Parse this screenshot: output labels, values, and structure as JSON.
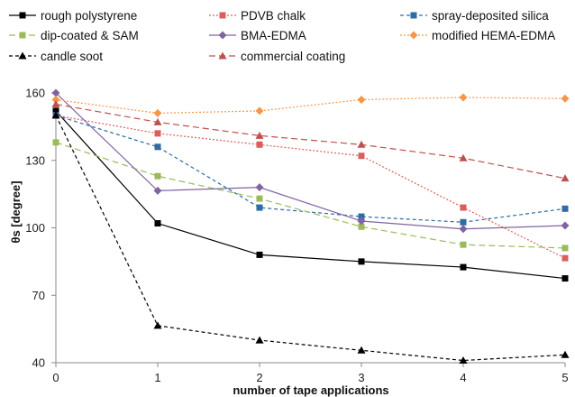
{
  "chart_data": {
    "type": "line",
    "title": "",
    "xlabel": "number of tape applications",
    "ylabel": "θs [degree]",
    "x": [
      0,
      1,
      2,
      3,
      4,
      5
    ],
    "x_ticks": [
      "0",
      "1",
      "2",
      "3",
      "4",
      "5"
    ],
    "ylim": [
      40,
      160
    ],
    "y_ticks": [
      "40",
      "70",
      "100",
      "130",
      "160"
    ],
    "grid": false,
    "legend_position": "top",
    "series": [
      {
        "name": "rough polystyrene",
        "color": "#000000",
        "marker": "square",
        "dash": "solid",
        "values": [
          152,
          102,
          88,
          85,
          82.5,
          77.5
        ]
      },
      {
        "name": "PDVB chalk",
        "color": "#d95f5f",
        "marker": "square",
        "dash": "dot",
        "values": [
          150,
          142,
          137,
          132,
          109,
          86.5
        ]
      },
      {
        "name": "spray-deposited silica",
        "color": "#2e6da4",
        "marker": "square",
        "dash": "dash",
        "values": [
          150,
          136,
          109,
          105,
          102.5,
          108.5
        ]
      },
      {
        "name": "dip-coated & SAM",
        "color": "#9bbb59",
        "marker": "square",
        "dash": "longdash",
        "values": [
          138,
          123,
          113,
          100.5,
          92.5,
          91
        ]
      },
      {
        "name": "BMA-EDMA",
        "color": "#8064a2",
        "marker": "diamond",
        "dash": "solid",
        "values": [
          160,
          116.5,
          118,
          103,
          99.5,
          101
        ]
      },
      {
        "name": "modified HEMA-EDMA",
        "color": "#f79646",
        "marker": "diamond",
        "dash": "dot",
        "values": [
          157,
          151,
          152,
          157,
          158,
          157.5
        ]
      },
      {
        "name": "candle soot",
        "color": "#000000",
        "marker": "triangle",
        "dash": "dash",
        "values": [
          150,
          56.5,
          50,
          45.5,
          41,
          43.5
        ]
      },
      {
        "name": "commercial coating",
        "color": "#c0504d",
        "marker": "triangle",
        "dash": "longdash",
        "values": [
          155,
          147,
          141,
          137,
          131,
          122
        ]
      }
    ]
  }
}
